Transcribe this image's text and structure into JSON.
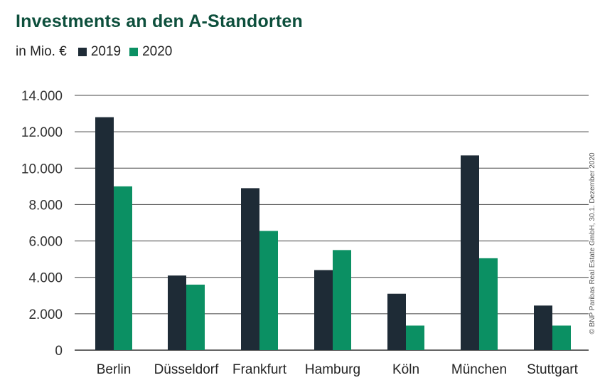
{
  "chart_data": {
    "type": "bar",
    "title": "Investments an den A-Standorten",
    "unit_label": "in Mio. €",
    "categories": [
      "Berlin",
      "Düsseldorf",
      "Frankfurt",
      "Hamburg",
      "Köln",
      "München",
      "Stuttgart"
    ],
    "series": [
      {
        "name": "2019",
        "color": "#1e2b36",
        "values": [
          12800,
          4100,
          8900,
          4400,
          3100,
          10700,
          2450
        ]
      },
      {
        "name": "2020",
        "color": "#0b9063",
        "values": [
          9000,
          3600,
          6550,
          5500,
          1350,
          5050,
          1350
        ]
      }
    ],
    "ylim": [
      0,
      14000
    ],
    "yticks": [
      0,
      2000,
      4000,
      6000,
      8000,
      10000,
      12000,
      14000
    ],
    "ytick_labels": [
      "0",
      "2.000",
      "4.000",
      "6.000",
      "8.000",
      "10.000",
      "12.000",
      "14.000"
    ],
    "grid": true,
    "xlabel": "",
    "ylabel": "",
    "credit": "© BNP Paribas Real Estate GmbH, 30.1. Dezember 2020"
  }
}
